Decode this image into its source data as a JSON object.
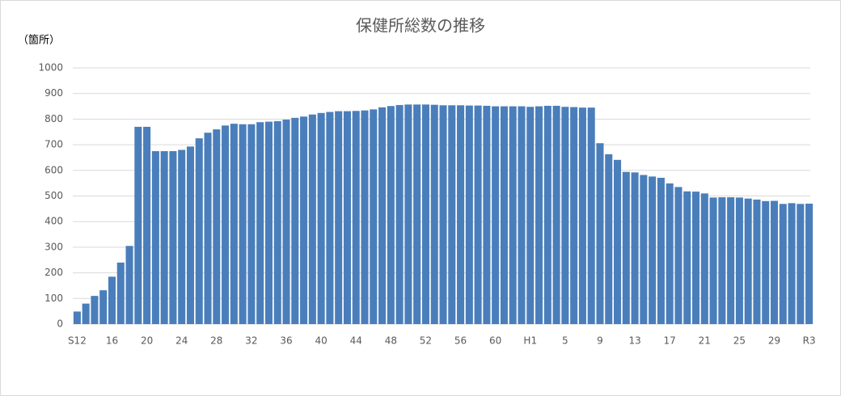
{
  "chart_data": {
    "type": "bar",
    "title": "保健所総数の推移",
    "y_axis_label": "（箇所）",
    "categories": [
      "S12",
      null,
      null,
      null,
      "16",
      null,
      null,
      null,
      "20",
      null,
      null,
      null,
      "24",
      null,
      null,
      null,
      "28",
      null,
      null,
      null,
      "32",
      null,
      null,
      null,
      "36",
      null,
      null,
      null,
      "40",
      null,
      null,
      null,
      "44",
      null,
      null,
      null,
      "48",
      null,
      null,
      null,
      "52",
      null,
      null,
      null,
      "56",
      null,
      null,
      null,
      "60",
      null,
      null,
      null,
      "H1",
      null,
      null,
      null,
      "5",
      null,
      null,
      null,
      "9",
      null,
      null,
      null,
      "13",
      null,
      null,
      null,
      "17",
      null,
      null,
      null,
      "21",
      null,
      null,
      null,
      "25",
      null,
      null,
      null,
      "29",
      null,
      null,
      null,
      "R3"
    ],
    "values": [
      49,
      80,
      110,
      132,
      185,
      240,
      305,
      770,
      770,
      675,
      675,
      675,
      680,
      693,
      725,
      747,
      760,
      775,
      782,
      780,
      780,
      788,
      790,
      792,
      798,
      805,
      810,
      818,
      824,
      828,
      831,
      831,
      832,
      834,
      838,
      846,
      851,
      855,
      857,
      857,
      857,
      856,
      854,
      854,
      854,
      853,
      853,
      852,
      850,
      850,
      850,
      850,
      848,
      850,
      852,
      852,
      848,
      847,
      845,
      845,
      706,
      663,
      641,
      594,
      592,
      582,
      576,
      571,
      549,
      535,
      518,
      517,
      510,
      494,
      495,
      495,
      494,
      490,
      486,
      480,
      481,
      469,
      472,
      469,
      470
    ],
    "color": "#4a7ebb",
    "ylim": [
      0,
      1000
    ],
    "yticks": [
      0,
      100,
      200,
      300,
      400,
      500,
      600,
      700,
      800,
      900,
      1000
    ],
    "grid": true
  }
}
